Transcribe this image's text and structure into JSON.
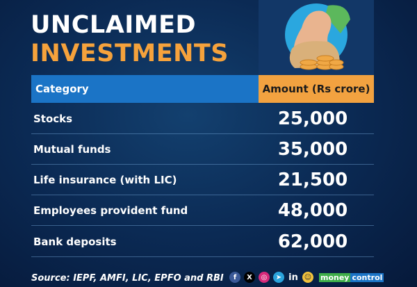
{
  "title": {
    "line1": "UNCLAIMED",
    "line2": "INVESTMENTS"
  },
  "colors": {
    "accent_orange": "#f2a240",
    "header_blue": "#1b74c6",
    "background": "#0b2a54"
  },
  "illustration": "money-bag-with-coins",
  "chart_data": {
    "type": "table",
    "columns": [
      "Category",
      "Amount (Rs crore)"
    ],
    "rows": [
      {
        "category": "Stocks",
        "amount": "25,000"
      },
      {
        "category": "Mutual funds",
        "amount": "35,000"
      },
      {
        "category": "Life insurance (with LIC)",
        "amount": "21,500"
      },
      {
        "category": "Employees provident fund",
        "amount": "48,000"
      },
      {
        "category": "Bank deposits",
        "amount": "62,000"
      }
    ]
  },
  "footer": {
    "source": "Source: IEPF, AMFI, LIC, EPFO and RBI",
    "social_icons": [
      "facebook-icon",
      "x-icon",
      "instagram-icon",
      "telegram-icon",
      "linkedin-icon",
      "snapchat-icon"
    ],
    "brand": {
      "part1": "money",
      "part2": "control"
    }
  }
}
